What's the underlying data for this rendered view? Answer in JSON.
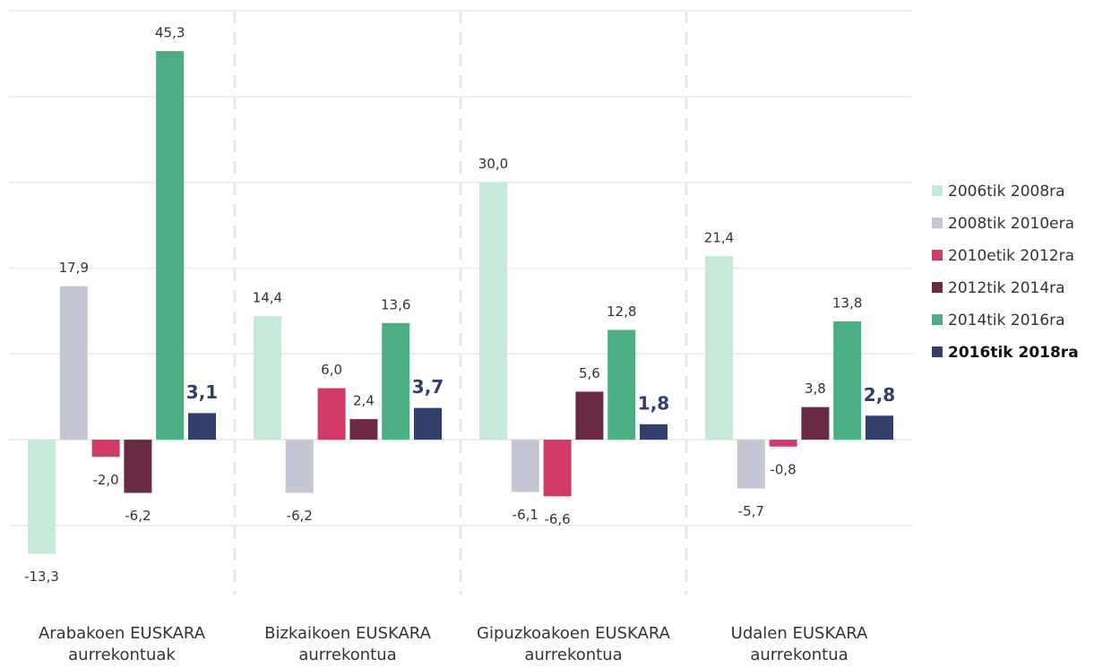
{
  "chart_data": {
    "type": "bar",
    "categories": [
      "Arabakoen EUSKARA aurrekontuak",
      "Bizkaikoen EUSKARA aurrekontua",
      "Gipuzkoakoen EUSKARA aurrekontua",
      "Udalen EUSKARA aurrekontua"
    ],
    "series": [
      {
        "name": "2006tik 2008ra",
        "color": "#c6e8d8",
        "values": [
          -13.3,
          14.4,
          30.0,
          21.4
        ],
        "value_labels": [
          "-13,3",
          "14,4",
          "30,0",
          "21,4"
        ]
      },
      {
        "name": "2008tik 2010era",
        "color": "#c5c8d4",
        "values": [
          17.9,
          -6.2,
          -6.1,
          -5.7
        ],
        "value_labels": [
          "17,9",
          "-6,2",
          "-6,1",
          "-5,7"
        ]
      },
      {
        "name": "2010etik 2012ra",
        "color": "#d13a65",
        "values": [
          -2.0,
          6.0,
          -6.6,
          -0.8
        ],
        "value_labels": [
          "-2,0",
          "6,0",
          "-6,6",
          "-0,8"
        ]
      },
      {
        "name": "2012tik 2014ra",
        "color": "#6b2a45",
        "values": [
          -6.2,
          2.4,
          5.6,
          3.8
        ],
        "value_labels": [
          "-6,2",
          "2,4",
          "5,6",
          "3,8"
        ]
      },
      {
        "name": "2014tik 2016ra",
        "color": "#4caf83",
        "values": [
          45.3,
          13.6,
          12.8,
          13.8
        ],
        "value_labels": [
          "45,3",
          "13,6",
          "12,8",
          "13,8"
        ]
      },
      {
        "name": "2016tik 2018ra",
        "color": "#333f6b",
        "values": [
          3.1,
          3.7,
          1.8,
          2.8
        ],
        "value_labels": [
          "3,1",
          "3,7",
          "1,8",
          "2,8"
        ],
        "bold": true
      }
    ],
    "ylim": [
      -17,
      50
    ],
    "yticks": [
      -10,
      0,
      10,
      20,
      30,
      40,
      50
    ],
    "grid": true,
    "legend": "right"
  }
}
